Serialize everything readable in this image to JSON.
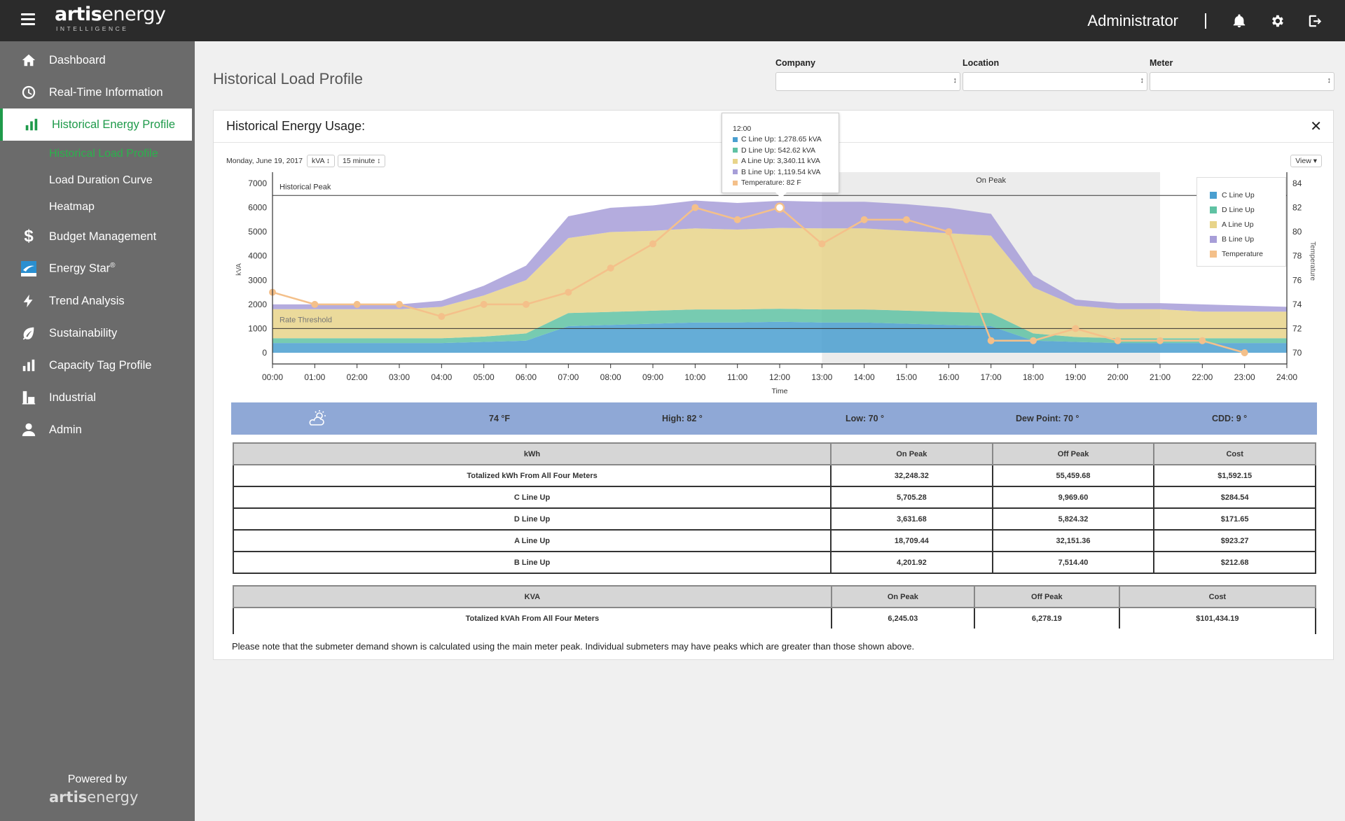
{
  "app": {
    "logo_main": "artis",
    "logo_main2": "energy",
    "logo_sub": "INTELLIGENCE",
    "user": "Administrator"
  },
  "sidebar": {
    "items": [
      {
        "label": "Dashboard",
        "icon": "home-icon"
      },
      {
        "label": "Real-Time Information",
        "icon": "clock-icon"
      },
      {
        "label": "Historical Energy Profile",
        "icon": "bar-chart-icon"
      },
      {
        "label": "Budget Management",
        "icon": "dollar-icon"
      },
      {
        "label": "Energy Star",
        "icon": "energy-star-icon"
      },
      {
        "label": "Trend Analysis",
        "icon": "lightning-icon"
      },
      {
        "label": "Sustainability",
        "icon": "leaf-icon"
      },
      {
        "label": "Capacity Tag Profile",
        "icon": "bar-chart-icon"
      },
      {
        "label": "Industrial",
        "icon": "factory-icon"
      },
      {
        "label": "Admin",
        "icon": "user-icon"
      }
    ],
    "subitems": [
      "Historical Load Profile",
      "Load Duration Curve",
      "Heatmap"
    ],
    "energy_star_sup": "®",
    "powered_by": "Powered by",
    "powered_logo_a": "artis",
    "powered_logo_b": "energy"
  },
  "page": {
    "title": "Historical Load Profile"
  },
  "filters": {
    "company": "Company",
    "location": "Location",
    "meter": "Meter"
  },
  "card": {
    "title": "Historical Energy Usage:",
    "date": "Monday, June 19, 2017",
    "unit": "kVA",
    "interval": "15 minute",
    "view": "View"
  },
  "tooltip": {
    "time": "12:00",
    "rows": [
      {
        "label": "C Line Up: 1,278.65 kVA",
        "color": "#4a9fd0"
      },
      {
        "label": "D Line Up: 542.62 kVA",
        "color": "#5fc2a3"
      },
      {
        "label": "A Line Up: 3,340.11 kVA",
        "color": "#e8d48a"
      },
      {
        "label": "B Line Up: 1,119.54 kVA",
        "color": "#a79ed8"
      },
      {
        "label": "Temperature: 82 F",
        "color": "#f4c08a"
      }
    ]
  },
  "legend": [
    {
      "label": "C Line Up",
      "color": "#4a9fd0"
    },
    {
      "label": "D Line Up",
      "color": "#5fc2a3"
    },
    {
      "label": "A Line Up",
      "color": "#e8d48a"
    },
    {
      "label": "B Line Up",
      "color": "#a79ed8"
    },
    {
      "label": "Temperature",
      "color": "#f4c08a"
    }
  ],
  "chart_data": {
    "type": "area",
    "xlabel": "Time",
    "ylabel": "kVA",
    "y2label": "Temperature",
    "ylim": [
      0,
      7000
    ],
    "y2lim": [
      70,
      84
    ],
    "x": [
      "00:00",
      "01:00",
      "02:00",
      "03:00",
      "04:00",
      "05:00",
      "06:00",
      "07:00",
      "08:00",
      "09:00",
      "10:00",
      "11:00",
      "12:00",
      "13:00",
      "14:00",
      "15:00",
      "16:00",
      "17:00",
      "18:00",
      "19:00",
      "20:00",
      "21:00",
      "22:00",
      "23:00",
      "24:00"
    ],
    "yticks": [
      "7000",
      "6000",
      "5000",
      "4000",
      "3000",
      "2000",
      "1000",
      "0"
    ],
    "y2ticks": [
      "84",
      "82",
      "80",
      "78",
      "76",
      "74",
      "72",
      "70"
    ],
    "annotations": {
      "historical_peak": "Historical Peak",
      "historical_peak_value": 6500,
      "rate_threshold": "Rate Threshold",
      "rate_threshold_value": 1000,
      "on_peak": "On Peak",
      "on_peak_range": [
        13,
        21
      ]
    },
    "hours": [
      0,
      1,
      2,
      3,
      4,
      5,
      6,
      7,
      8,
      9,
      10,
      11,
      12,
      13,
      14,
      15,
      16,
      17,
      18,
      19,
      20,
      21,
      22,
      23,
      24
    ],
    "series": [
      {
        "name": "C Line Up",
        "color": "#4a9fd0",
        "values": [
          400,
          400,
          400,
          400,
          400,
          450,
          500,
          1100,
          1150,
          1200,
          1250,
          1250,
          1280,
          1250,
          1250,
          1200,
          1150,
          1100,
          500,
          450,
          400,
          400,
          400,
          400,
          400
        ]
      },
      {
        "name": "D Line Up",
        "color": "#5fc2a3",
        "values": [
          200,
          200,
          200,
          200,
          200,
          220,
          300,
          540,
          540,
          540,
          540,
          540,
          540,
          540,
          540,
          540,
          540,
          540,
          300,
          200,
          200,
          200,
          200,
          200,
          200
        ]
      },
      {
        "name": "A Line Up",
        "color": "#e8d48a",
        "values": [
          1200,
          1200,
          1200,
          1200,
          1300,
          1700,
          2200,
          3100,
          3300,
          3300,
          3350,
          3300,
          3340,
          3350,
          3350,
          3300,
          3250,
          3200,
          1900,
          1300,
          1200,
          1200,
          1100,
          1100,
          1100
        ]
      },
      {
        "name": "B Line Up",
        "color": "#a79ed8",
        "values": [
          200,
          200,
          200,
          200,
          250,
          400,
          600,
          900,
          1000,
          1050,
          1150,
          1100,
          1120,
          1100,
          1100,
          1100,
          1050,
          900,
          500,
          250,
          250,
          250,
          300,
          250,
          200
        ]
      }
    ],
    "temperature": {
      "name": "Temperature",
      "color": "#f4c08a",
      "hours": [
        0,
        1,
        2,
        3,
        4,
        5,
        6,
        7,
        8,
        9,
        10,
        11,
        12,
        13,
        14,
        15,
        16,
        17,
        18,
        19,
        20,
        21,
        22,
        23
      ],
      "values": [
        75,
        74,
        74,
        74,
        73,
        74,
        74,
        75,
        77,
        79,
        82,
        81,
        82,
        79,
        81,
        81,
        80,
        71,
        71,
        72,
        71,
        71,
        71,
        70
      ]
    }
  },
  "weather": {
    "icon": "partly-cloudy-icon",
    "temp": "74 °F",
    "high": "High: 82 °",
    "low": "Low: 70 °",
    "dew": "Dew Point: 70 °",
    "cdd": "CDD: 9 °"
  },
  "kwh_table": {
    "headers": [
      "kWh",
      "On Peak",
      "Off Peak",
      "Cost"
    ],
    "rows": [
      [
        "Totalized kWh From All Four Meters",
        "32,248.32",
        "55,459.68",
        "$1,592.15"
      ],
      [
        "C Line Up",
        "5,705.28",
        "9,969.60",
        "$284.54"
      ],
      [
        "D Line Up",
        "3,631.68",
        "5,824.32",
        "$171.65"
      ],
      [
        "A Line Up",
        "18,709.44",
        "32,151.36",
        "$923.27"
      ],
      [
        "B Line Up",
        "4,201.92",
        "7,514.40",
        "$212.68"
      ]
    ]
  },
  "kva_table": {
    "headers": [
      "KVA",
      "On Peak",
      "Off Peak",
      "Cost"
    ],
    "rows": [
      [
        "Totalized kVAh From All Four Meters",
        "6,245.03",
        "6,278.19",
        "$101,434.19"
      ]
    ]
  },
  "note": "Please note that the submeter demand shown is calculated using the main meter peak. Individual submeters may have peaks which are greater than those shown above."
}
